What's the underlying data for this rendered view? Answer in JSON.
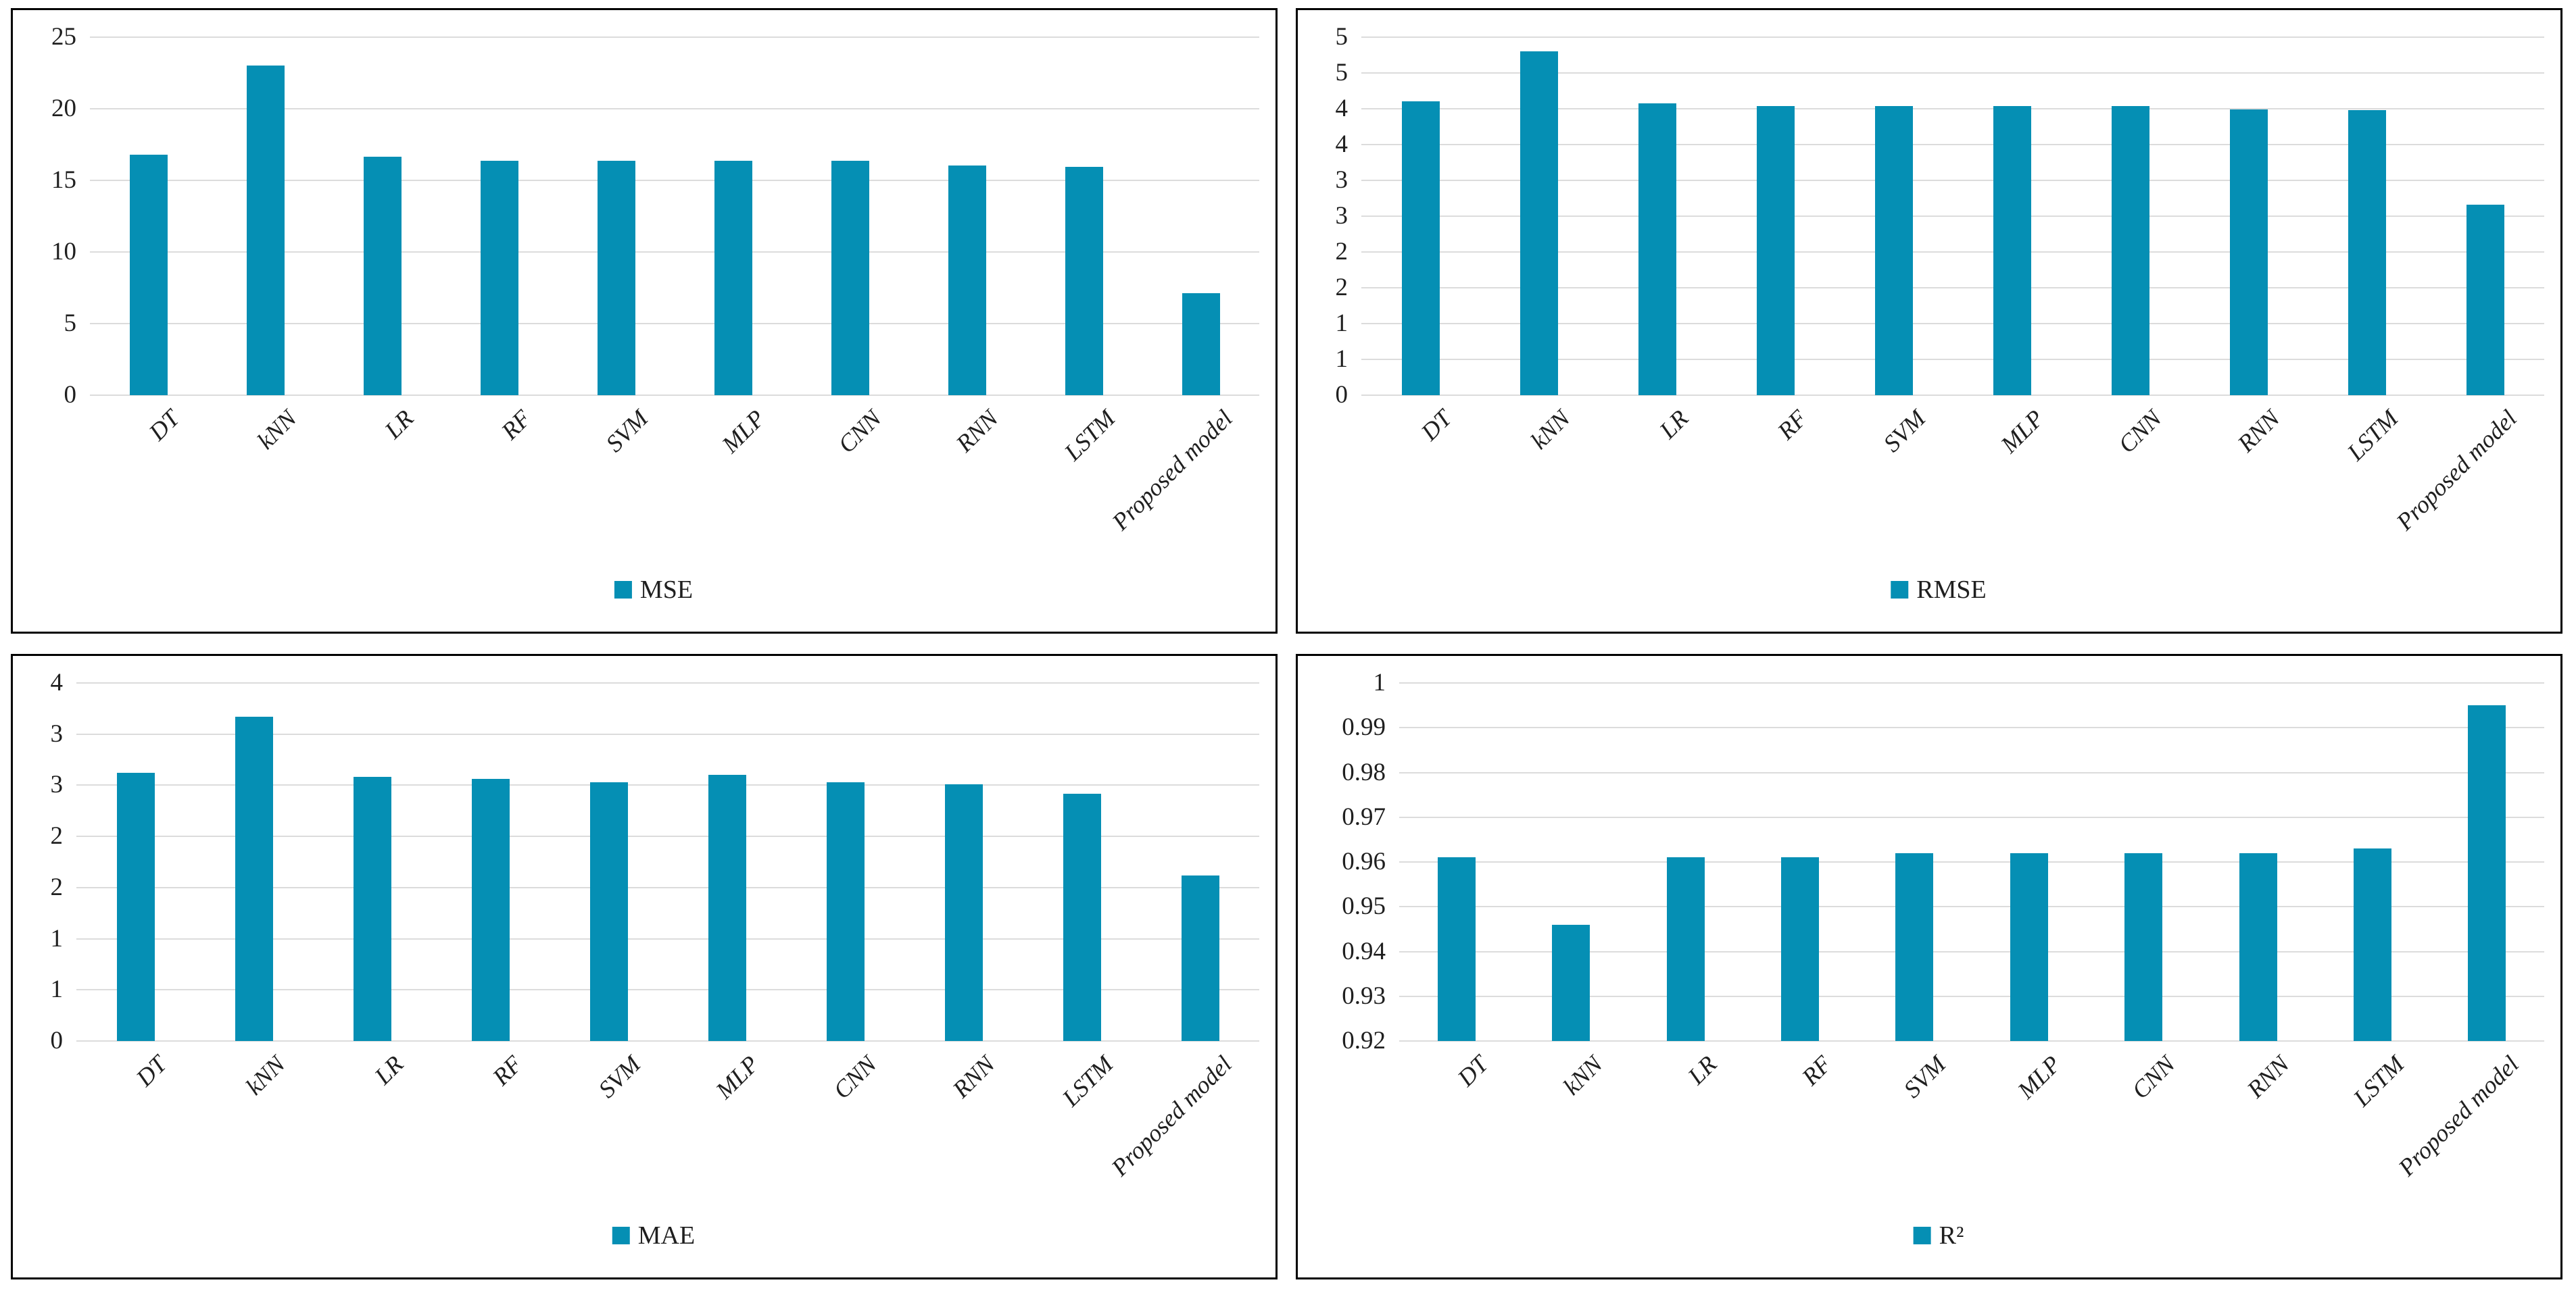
{
  "figure_style": {
    "background": "#ffffff",
    "panel_border_color": "#000000",
    "bar_color": "#058FB4",
    "gridline_color": "#DCDCDC",
    "text_color": "#1f1f1f"
  },
  "chart_data": [
    {
      "type": "bar",
      "title": "MSE",
      "legend_label": "MSE",
      "legend_position": "bottom",
      "grid": true,
      "categories": [
        "DT",
        "kNN",
        "LR",
        "RF",
        "SVM",
        "MLP",
        "CNN",
        "RNN",
        "LSTM",
        "Proposed model"
      ],
      "values": [
        16.8,
        23.0,
        16.65,
        16.35,
        16.35,
        16.35,
        16.35,
        16.05,
        15.95,
        7.1
      ],
      "ylim": [
        0,
        25
      ],
      "yticks": [
        {
          "value": 0,
          "label": "0"
        },
        {
          "value": 5,
          "label": "5"
        },
        {
          "value": 10,
          "label": "10"
        },
        {
          "value": 15,
          "label": "15"
        },
        {
          "value": 20,
          "label": "20"
        },
        {
          "value": 25,
          "label": "25"
        }
      ]
    },
    {
      "type": "bar",
      "title": "RMSE",
      "legend_label": "RMSE",
      "legend_position": "bottom",
      "grid": true,
      "categories": [
        "DT",
        "kNN",
        "LR",
        "RF",
        "SVM",
        "MLP",
        "CNN",
        "RNN",
        "LSTM",
        "Proposed model"
      ],
      "values": [
        4.1,
        4.8,
        4.08,
        4.04,
        4.04,
        4.04,
        4.04,
        3.99,
        3.98,
        2.66
      ],
      "ylim": [
        0,
        5
      ],
      "yticks": [
        {
          "value": 0,
          "label": "0"
        },
        {
          "value": 0.5,
          "label": "1"
        },
        {
          "value": 1,
          "label": "1"
        },
        {
          "value": 1.5,
          "label": "2"
        },
        {
          "value": 2,
          "label": "2"
        },
        {
          "value": 2.5,
          "label": "3"
        },
        {
          "value": 3,
          "label": "3"
        },
        {
          "value": 3.5,
          "label": "4"
        },
        {
          "value": 4,
          "label": "4"
        },
        {
          "value": 4.5,
          "label": "5"
        },
        {
          "value": 5,
          "label": "5"
        }
      ]
    },
    {
      "type": "bar",
      "title": "MAE",
      "legend_label": "MAE",
      "legend_position": "bottom",
      "grid": true,
      "categories": [
        "DT",
        "kNN",
        "LR",
        "RF",
        "SVM",
        "MLP",
        "CNN",
        "RNN",
        "LSTM",
        "Proposed model"
      ],
      "values": [
        2.62,
        3.17,
        2.58,
        2.56,
        2.53,
        2.6,
        2.53,
        2.51,
        2.42,
        1.62
      ],
      "ylim": [
        0,
        3.5
      ],
      "yticks": [
        {
          "value": 0,
          "label": "0"
        },
        {
          "value": 0.5,
          "label": "1"
        },
        {
          "value": 1,
          "label": "1"
        },
        {
          "value": 1.5,
          "label": "2"
        },
        {
          "value": 2,
          "label": "2"
        },
        {
          "value": 2.5,
          "label": "3"
        },
        {
          "value": 3,
          "label": "3"
        },
        {
          "value": 3.5,
          "label": "4"
        }
      ]
    },
    {
      "type": "bar",
      "title": "R²",
      "legend_label": "R²",
      "legend_position": "bottom",
      "grid": true,
      "categories": [
        "DT",
        "kNN",
        "LR",
        "RF",
        "SVM",
        "MLP",
        "CNN",
        "RNN",
        "LSTM",
        "Proposed model"
      ],
      "values": [
        0.961,
        0.946,
        0.961,
        0.961,
        0.962,
        0.962,
        0.962,
        0.962,
        0.963,
        0.995
      ],
      "ylim": [
        0.92,
        1.0
      ],
      "yticks": [
        {
          "value": 0.92,
          "label": "0.92"
        },
        {
          "value": 0.93,
          "label": "0.93"
        },
        {
          "value": 0.94,
          "label": "0.94"
        },
        {
          "value": 0.95,
          "label": "0.95"
        },
        {
          "value": 0.96,
          "label": "0.96"
        },
        {
          "value": 0.97,
          "label": "0.97"
        },
        {
          "value": 0.98,
          "label": "0.98"
        },
        {
          "value": 0.99,
          "label": "0.99"
        },
        {
          "value": 1.0,
          "label": "1"
        }
      ]
    }
  ]
}
